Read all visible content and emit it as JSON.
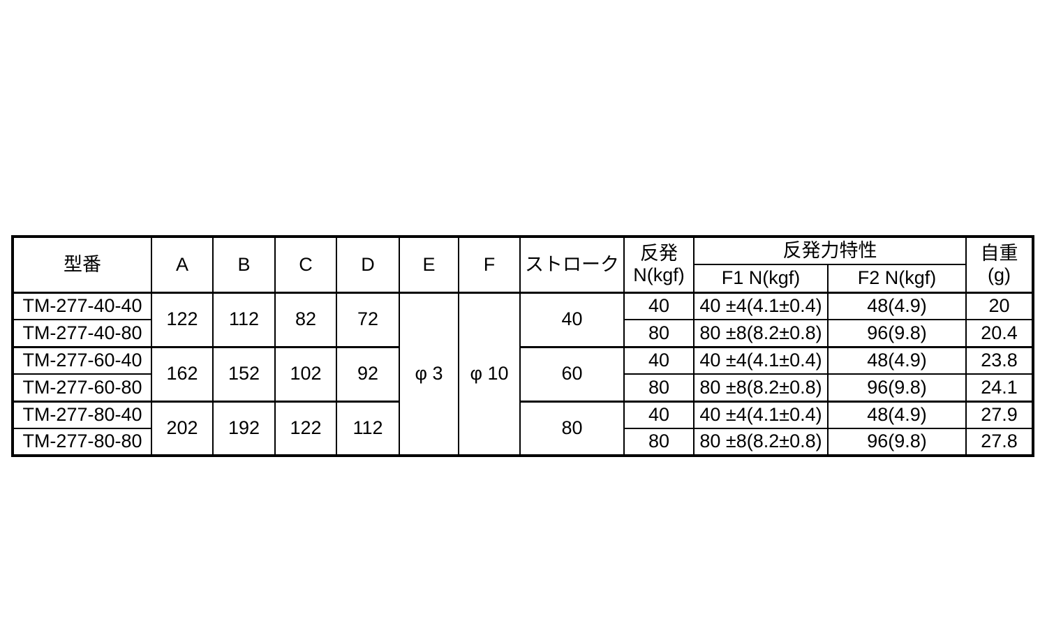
{
  "page": {
    "background_color": "#ffffff",
    "border_color": "#000000",
    "text_color": "#000000"
  },
  "table": {
    "headers": {
      "model": "型番",
      "a": "A",
      "b": "B",
      "c": "C",
      "d": "D",
      "e": "E",
      "f": "F",
      "stroke": "ストローク",
      "rebound_line1": "反発",
      "rebound_line2": "N(kgf)",
      "rebound_force": "反発力特性",
      "f1": "F1 N(kgf)",
      "f2": "F2 N(kgf)",
      "weight_line1": "自重",
      "weight_line2": "(g)"
    },
    "shared": {
      "e": "φ 3",
      "f": "φ 10"
    },
    "groups": [
      {
        "a": "122",
        "b": "112",
        "c": "82",
        "d": "72",
        "stroke": "40"
      },
      {
        "a": "162",
        "b": "152",
        "c": "102",
        "d": "92",
        "stroke": "60"
      },
      {
        "a": "202",
        "b": "192",
        "c": "122",
        "d": "112",
        "stroke": "80"
      }
    ],
    "rows": [
      {
        "model": "TM-277-40-40",
        "rebound": "40",
        "f1": "40 ±4(4.1±0.4)",
        "f2": "48(4.9)",
        "weight": "20"
      },
      {
        "model": "TM-277-40-80",
        "rebound": "80",
        "f1": "80 ±8(8.2±0.8)",
        "f2": "96(9.8)",
        "weight": "20.4"
      },
      {
        "model": "TM-277-60-40",
        "rebound": "40",
        "f1": "40 ±4(4.1±0.4)",
        "f2": "48(4.9)",
        "weight": "23.8"
      },
      {
        "model": "TM-277-60-80",
        "rebound": "80",
        "f1": "80 ±8(8.2±0.8)",
        "f2": "96(9.8)",
        "weight": "24.1"
      },
      {
        "model": "TM-277-80-40",
        "rebound": "40",
        "f1": "40 ±4(4.1±0.4)",
        "f2": "48(4.9)",
        "weight": "27.9"
      },
      {
        "model": "TM-277-80-80",
        "rebound": "80",
        "f1": "80 ±8(8.2±0.8)",
        "f2": "96(9.8)",
        "weight": "27.8"
      }
    ]
  }
}
